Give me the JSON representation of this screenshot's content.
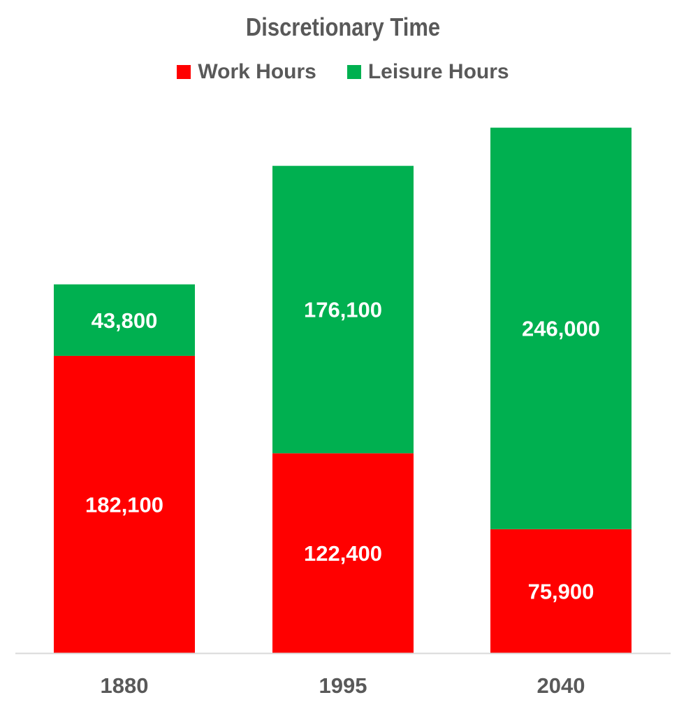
{
  "chart_data": {
    "type": "bar",
    "stacked": true,
    "title": "Discretionary Time",
    "categories": [
      "1880",
      "1995",
      "2040"
    ],
    "series": [
      {
        "name": "Work Hours",
        "color": "#ff0000",
        "values": [
          182100,
          122400,
          75900
        ],
        "labels": [
          "182,100",
          "122,400",
          "75,900"
        ]
      },
      {
        "name": "Leisure Hours",
        "color": "#00b050",
        "values": [
          43800,
          176100,
          246000
        ],
        "labels": [
          "43,800",
          "176,100",
          "246,000"
        ]
      }
    ],
    "ylim": [
      0,
      350000
    ],
    "legend_position": "top",
    "grid": false
  }
}
